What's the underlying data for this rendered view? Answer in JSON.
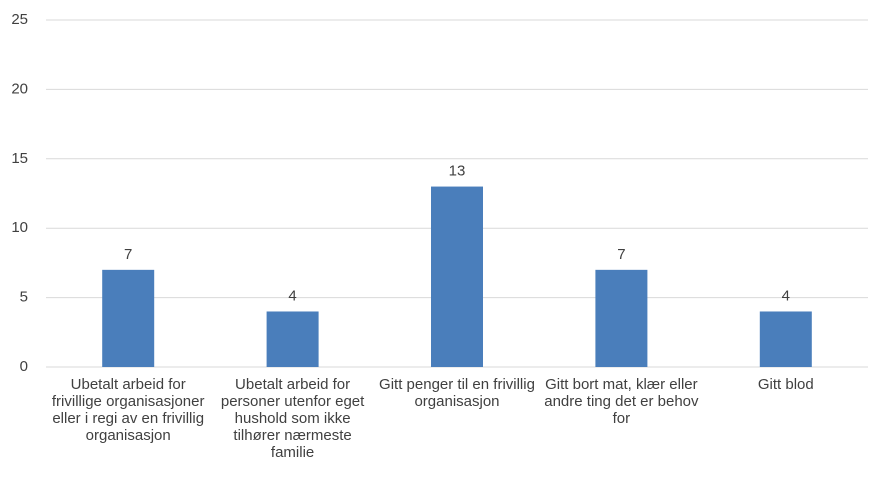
{
  "chart_data": {
    "type": "bar",
    "categories": [
      "Ubetalt arbeid for frivillige organisasjoner eller i regi av en frivillig organisasjon",
      "Ubetalt arbeid for personer utenfor eget hushold som ikke tilhører nærmeste familie",
      "Gitt penger til en frivillig organisasjon",
      "Gitt bort mat, klær eller andre ting det er behov for",
      "Gitt blod"
    ],
    "values": [
      7,
      4,
      13,
      7,
      4
    ],
    "color": "#4a7ebb",
    "ylim": [
      0,
      25
    ],
    "yticks": [
      0,
      5,
      10,
      15,
      20,
      25
    ],
    "grid": true
  }
}
